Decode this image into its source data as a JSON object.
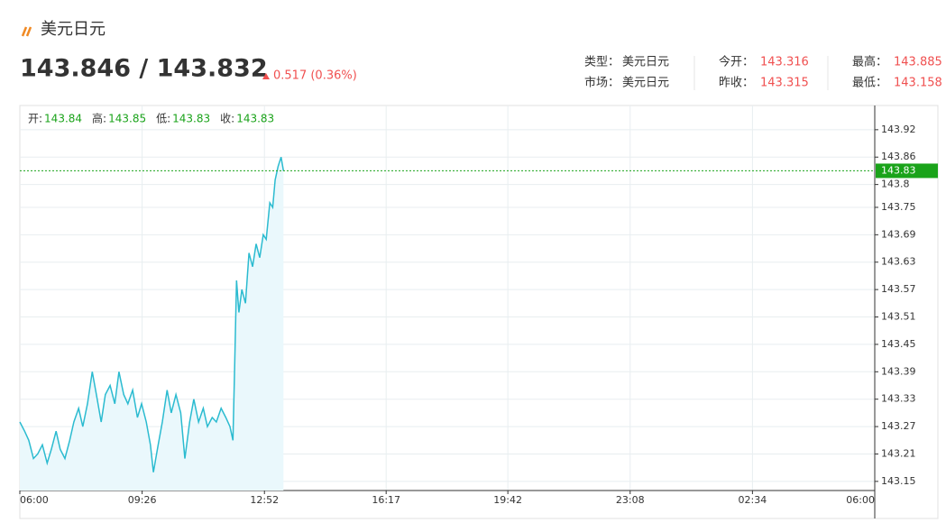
{
  "header": {
    "title": "美元日元",
    "price": "143.846 / 143.832",
    "change": "0.517 (0.36%)"
  },
  "quote": [
    [
      {
        "label": "类型：",
        "value": "美元日元"
      },
      {
        "label": "今开：",
        "value": "143.316"
      },
      {
        "label": "最高：",
        "value": "143.885"
      }
    ],
    [
      {
        "label": "市场：",
        "value": "美元日元"
      },
      {
        "label": "昨收：",
        "value": "143.315"
      },
      {
        "label": "最低：",
        "value": "143.158"
      }
    ]
  ],
  "chart_data": {
    "type": "area",
    "ohlc": [
      {
        "label": "开:",
        "value": 143.84
      },
      {
        "label": "高:",
        "value": 143.85
      },
      {
        "label": "低:",
        "value": 143.83
      },
      {
        "label": "收:",
        "value": 143.83
      }
    ],
    "x": [
      0,
      8,
      15,
      23,
      30,
      38,
      46,
      53,
      61,
      68,
      76,
      84,
      91,
      99,
      106,
      114,
      122,
      129,
      137,
      144,
      152,
      160,
      167,
      175,
      182,
      190,
      198,
      205,
      213,
      220,
      225,
      233,
      240,
      248,
      255,
      263,
      271,
      278,
      286,
      293,
      301,
      309,
      316,
      324,
      331,
      339,
      347,
      354,
      359,
      362,
      365,
      369,
      374,
      380,
      386,
      392,
      398,
      404,
      410,
      415,
      421,
      426,
      430,
      435,
      440,
      444
    ],
    "series": [
      {
        "color": "#2bbbd0",
        "fill": "#eaf8fc",
        "values": [
          143.28,
          143.26,
          143.24,
          143.2,
          143.21,
          143.23,
          143.19,
          143.22,
          143.26,
          143.22,
          143.2,
          143.24,
          143.28,
          143.31,
          143.27,
          143.32,
          143.39,
          143.34,
          143.28,
          143.34,
          143.36,
          143.32,
          143.39,
          143.34,
          143.32,
          143.35,
          143.29,
          143.32,
          143.28,
          143.23,
          143.17,
          143.23,
          143.28,
          143.35,
          143.3,
          143.34,
          143.3,
          143.2,
          143.28,
          143.33,
          143.28,
          143.31,
          143.27,
          143.29,
          143.28,
          143.31,
          143.29,
          143.27,
          143.24,
          143.41,
          143.59,
          143.52,
          143.57,
          143.54,
          143.65,
          143.62,
          143.67,
          143.64,
          143.69,
          143.68,
          143.76,
          143.75,
          143.81,
          143.84,
          143.86,
          143.83
        ]
      }
    ],
    "last_price": 143.83,
    "last_price_color": "#1aa31a",
    "xlim": [
      0,
      1440
    ],
    "xticks": [
      {
        "value": 0,
        "label": "06:00"
      },
      {
        "value": 206,
        "label": "09:26"
      },
      {
        "value": 412,
        "label": "12:52"
      },
      {
        "value": 617,
        "label": "16:17"
      },
      {
        "value": 822,
        "label": "19:42"
      },
      {
        "value": 1028,
        "label": "23:08"
      },
      {
        "value": 1234,
        "label": "02:34"
      },
      {
        "value": 1440,
        "label": "06:00"
      }
    ],
    "ylim": [
      143.13,
      143.973
    ],
    "yticks": [
      143.15,
      143.21,
      143.27,
      143.33,
      143.39,
      143.45,
      143.51,
      143.57,
      143.63,
      143.69,
      143.75,
      143.8,
      143.86,
      143.92
    ],
    "grid": true
  }
}
